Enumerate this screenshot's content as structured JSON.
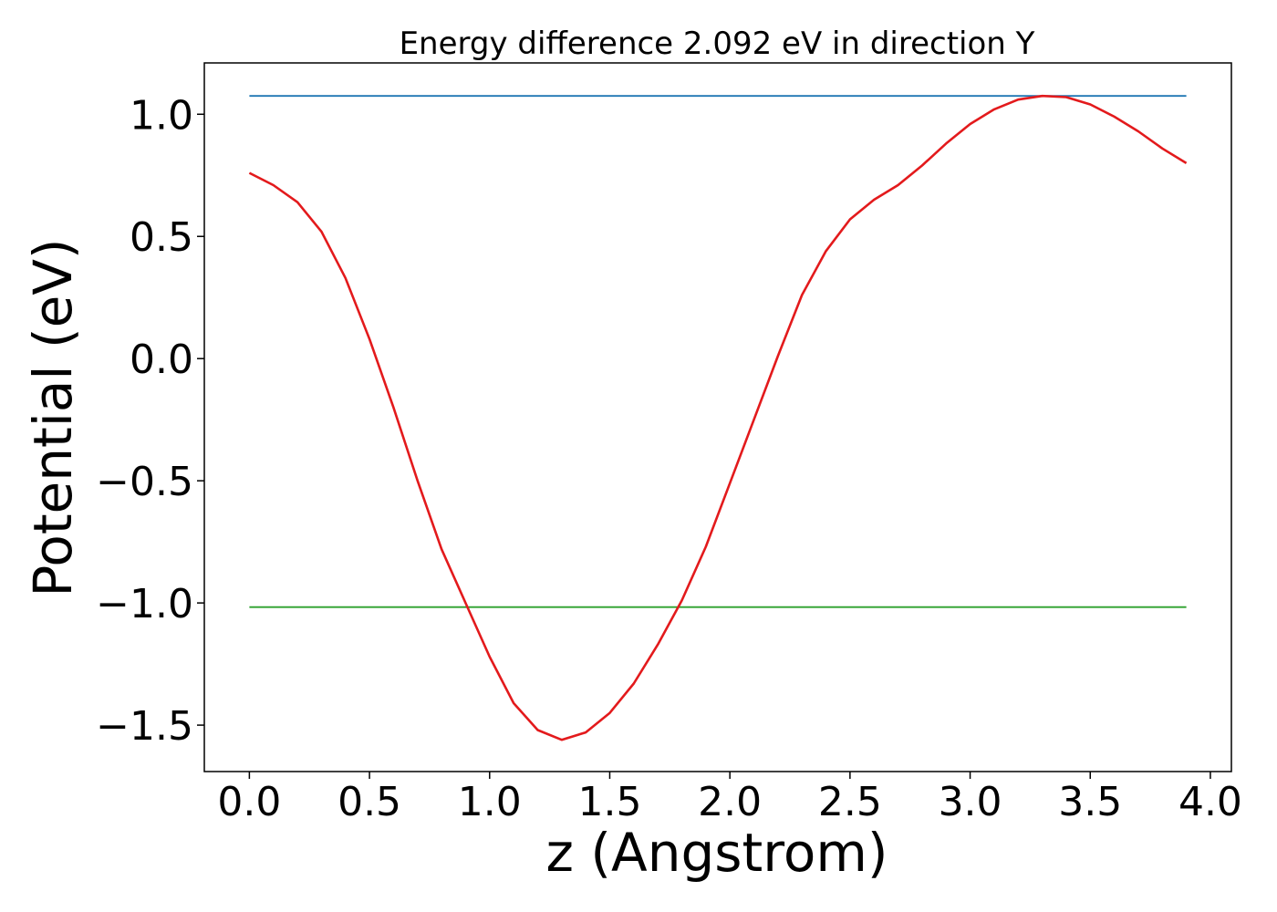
{
  "chart_data": {
    "type": "line",
    "title": "Energy difference 2.092 eV in direction Y",
    "xlabel": "z (Angstrom)",
    "ylabel": "Potential (eV)",
    "xlim": [
      -0.1875,
      4.0875
    ],
    "ylim": [
      -1.69,
      1.21
    ],
    "xticks": [
      0.0,
      0.5,
      1.0,
      1.5,
      2.0,
      2.5,
      3.0,
      3.5,
      4.0
    ],
    "xtick_labels": [
      "0.0",
      "0.5",
      "1.0",
      "1.5",
      "2.0",
      "2.5",
      "3.0",
      "3.5",
      "4.0"
    ],
    "yticks": [
      1.0,
      0.5,
      0.0,
      -0.5,
      -1.0,
      -1.5
    ],
    "ytick_labels": [
      "1.0",
      "0.5",
      "0.0",
      "−0.5",
      "−1.0",
      "−1.5"
    ],
    "grid": false,
    "series": [
      {
        "color": "#1f77b4",
        "x": [
          0.0,
          3.9
        ],
        "y": [
          1.075,
          1.075
        ]
      },
      {
        "color": "#2ca02c",
        "x": [
          0.0,
          3.9
        ],
        "y": [
          -1.017,
          -1.017
        ]
      },
      {
        "color": "#e31a1c",
        "x": [
          0.0,
          0.1,
          0.2,
          0.3,
          0.4,
          0.5,
          0.6,
          0.7,
          0.8,
          0.9,
          1.0,
          1.1,
          1.2,
          1.3,
          1.4,
          1.5,
          1.6,
          1.7,
          1.8,
          1.9,
          2.0,
          2.1,
          2.2,
          2.3,
          2.4,
          2.5,
          2.6,
          2.7,
          2.8,
          2.9,
          3.0,
          3.1,
          3.2,
          3.3,
          3.4,
          3.5,
          3.6,
          3.7,
          3.8,
          3.9
        ],
        "y": [
          0.76,
          0.71,
          0.64,
          0.52,
          0.33,
          0.08,
          -0.2,
          -0.5,
          -0.78,
          -1.0,
          -1.22,
          -1.41,
          -1.52,
          -1.56,
          -1.53,
          -1.45,
          -1.33,
          -1.17,
          -0.99,
          -0.77,
          -0.51,
          -0.25,
          0.01,
          0.26,
          0.44,
          0.57,
          0.65,
          0.71,
          0.79,
          0.88,
          0.96,
          1.02,
          1.06,
          1.075,
          1.07,
          1.04,
          0.99,
          0.93,
          0.86,
          0.8
        ]
      }
    ]
  }
}
